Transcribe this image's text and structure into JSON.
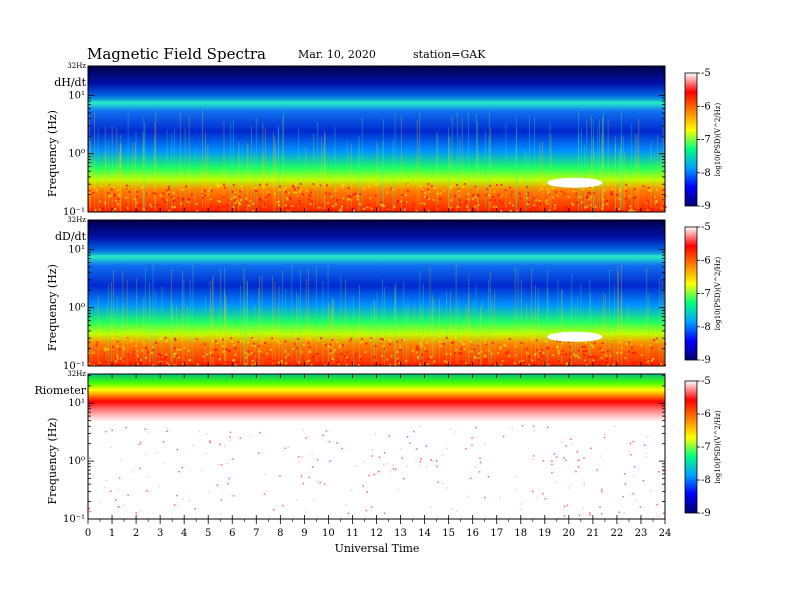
{
  "header": {
    "title": "Magnetic  Field  Spectra",
    "date": "Mar. 10, 2020",
    "station": "station=GAK"
  },
  "chart_data": {
    "type": "heatmap",
    "xlabel": "Universal Time",
    "x_ticks": [
      "0",
      "1",
      "2",
      "3",
      "4",
      "5",
      "6",
      "7",
      "8",
      "9",
      "10",
      "11",
      "12",
      "13",
      "14",
      "15",
      "16",
      "17",
      "18",
      "19",
      "20",
      "21",
      "22",
      "23",
      "24"
    ],
    "xlim": [
      0,
      24
    ],
    "ylabel": "Frequency (Hz)",
    "y_scale": "log",
    "ylim": [
      0.1,
      32
    ],
    "top_freq_label": "32Hz",
    "colorbar": {
      "label": "log10(PSD)(V^2/Hz)",
      "ticks": [
        "-5",
        "-6",
        "-7",
        "-8",
        "-9"
      ],
      "range": [
        -9,
        -5
      ],
      "colors": [
        "#000070",
        "#0000ff",
        "#00a0ff",
        "#00ff80",
        "#ffff00",
        "#ff8000",
        "#ff0000",
        "#ffffff"
      ]
    },
    "panels": [
      {
        "name": "dH/dt",
        "y_tick_labels": [
          "10⁻¹",
          "10⁰",
          "10¹"
        ]
      },
      {
        "name": "dD/dt",
        "y_tick_labels": [
          "10⁻¹",
          "10⁰",
          "10¹"
        ]
      },
      {
        "name": "Riometer",
        "y_tick_labels": [
          "10⁻¹",
          "10⁰",
          "10¹"
        ]
      }
    ]
  }
}
